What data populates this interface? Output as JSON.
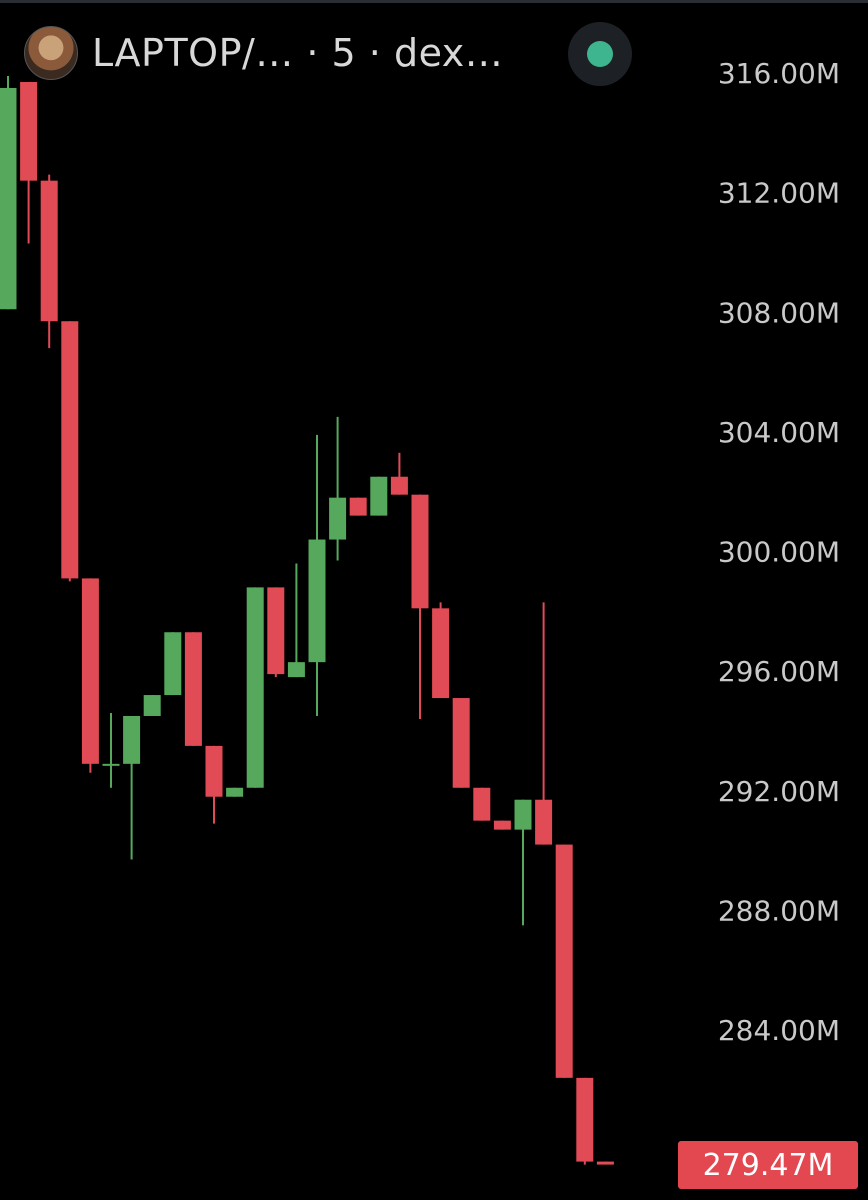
{
  "header": {
    "title": "LAPTOP/… · 5 · dex…",
    "status_color": "#3fb58f"
  },
  "chart_data": {
    "type": "candlestick",
    "y_tick_labels": [
      "316.00M",
      "312.00M",
      "308.00M",
      "304.00M",
      "300.00M",
      "296.00M",
      "292.00M",
      "288.00M",
      "284.00M"
    ],
    "y_ticks": [
      316,
      312,
      308,
      304,
      300,
      296,
      292,
      288,
      284
    ],
    "ylim": [
      279.0,
      316.4
    ],
    "last_price_label": "279.47M",
    "up_color": "#56a95c",
    "down_color": "#e04b55",
    "candles": [
      {
        "o": 308.1,
        "h": 315.9,
        "l": 308.1,
        "c": 315.5
      },
      {
        "o": 315.7,
        "h": 315.7,
        "l": 310.3,
        "c": 312.4
      },
      {
        "o": 312.4,
        "h": 312.6,
        "l": 306.8,
        "c": 307.7
      },
      {
        "o": 307.7,
        "h": 307.7,
        "l": 299.0,
        "c": 299.1
      },
      {
        "o": 299.1,
        "h": 299.1,
        "l": 292.6,
        "c": 292.9
      },
      {
        "o": 292.9,
        "h": 294.6,
        "l": 292.1,
        "c": 292.9
      },
      {
        "o": 292.9,
        "h": 294.5,
        "l": 289.7,
        "c": 294.5
      },
      {
        "o": 294.5,
        "h": 295.2,
        "l": 294.5,
        "c": 295.2
      },
      {
        "o": 295.2,
        "h": 297.3,
        "l": 295.2,
        "c": 297.3
      },
      {
        "o": 297.3,
        "h": 297.3,
        "l": 293.5,
        "c": 293.5
      },
      {
        "o": 293.5,
        "h": 293.5,
        "l": 290.9,
        "c": 291.8
      },
      {
        "o": 291.8,
        "h": 292.1,
        "l": 291.8,
        "c": 292.1
      },
      {
        "o": 292.1,
        "h": 298.8,
        "l": 292.1,
        "c": 298.8
      },
      {
        "o": 298.8,
        "h": 298.8,
        "l": 295.8,
        "c": 295.9
      },
      {
        "o": 295.8,
        "h": 299.6,
        "l": 295.8,
        "c": 296.3
      },
      {
        "o": 296.3,
        "h": 303.9,
        "l": 294.5,
        "c": 300.4
      },
      {
        "o": 300.4,
        "h": 304.5,
        "l": 299.7,
        "c": 301.8
      },
      {
        "o": 301.8,
        "h": 301.8,
        "l": 301.2,
        "c": 301.2
      },
      {
        "o": 301.2,
        "h": 302.5,
        "l": 301.2,
        "c": 302.5
      },
      {
        "o": 302.5,
        "h": 303.3,
        "l": 301.9,
        "c": 301.9
      },
      {
        "o": 301.9,
        "h": 301.9,
        "l": 294.4,
        "c": 298.1
      },
      {
        "o": 298.1,
        "h": 298.3,
        "l": 295.1,
        "c": 295.1
      },
      {
        "o": 295.1,
        "h": 295.1,
        "l": 292.1,
        "c": 292.1
      },
      {
        "o": 292.1,
        "h": 292.1,
        "l": 291.0,
        "c": 291.0
      },
      {
        "o": 291.0,
        "h": 291.0,
        "l": 290.7,
        "c": 290.7
      },
      {
        "o": 290.7,
        "h": 291.7,
        "l": 287.5,
        "c": 291.7
      },
      {
        "o": 291.7,
        "h": 298.3,
        "l": 290.2,
        "c": 290.2
      },
      {
        "o": 290.2,
        "h": 290.2,
        "l": 282.4,
        "c": 282.4
      },
      {
        "o": 282.4,
        "h": 282.4,
        "l": 279.5,
        "c": 279.6
      },
      {
        "o": 279.6,
        "h": 279.6,
        "l": 279.5,
        "c": 279.5
      }
    ]
  }
}
